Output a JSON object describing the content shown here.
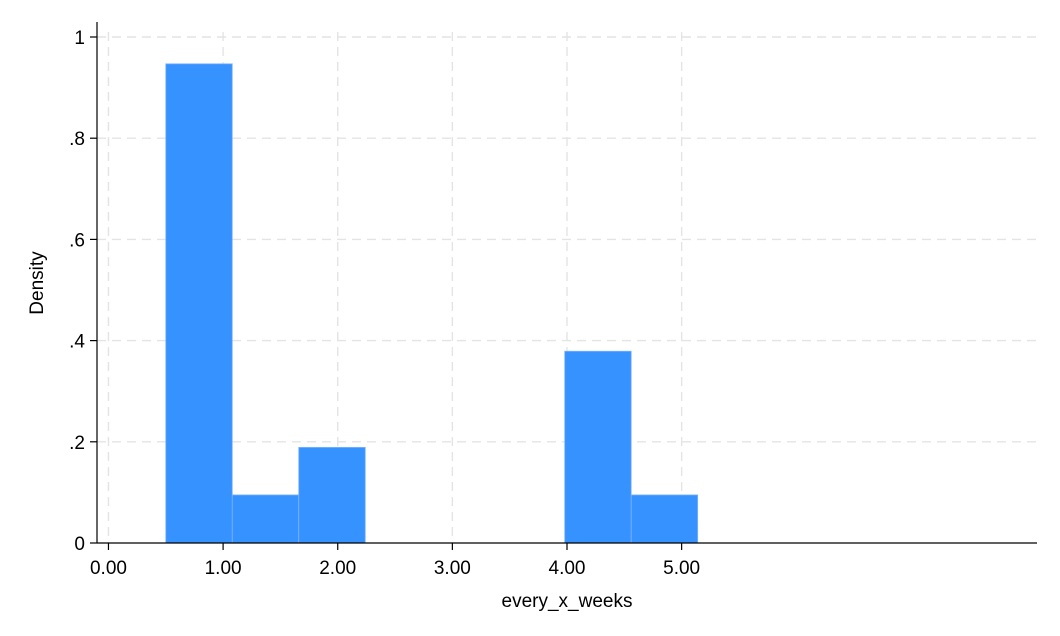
{
  "chart_data": {
    "type": "bar",
    "title": "",
    "xlabel": "every_x_weeks",
    "ylabel": "Density",
    "xlim": [
      -0.1,
      8.1
    ],
    "ylim": [
      0,
      1.0
    ],
    "x_ticks": [
      0,
      1,
      2,
      3,
      4,
      5
    ],
    "x_tick_labels": [
      "0.00",
      "1.00",
      "2.00",
      "3.00",
      "4.00",
      "5.00"
    ],
    "y_ticks": [
      0,
      0.2,
      0.4,
      0.6,
      0.8,
      1
    ],
    "y_tick_labels": [
      "0",
      ".2",
      ".4",
      ".6",
      ".8",
      "1"
    ],
    "grid": true,
    "bar_color": "#3592ff",
    "bins": [
      {
        "start": 0.5,
        "end": 1.08,
        "density": 0.947
      },
      {
        "start": 1.08,
        "end": 1.66,
        "density": 0.095
      },
      {
        "start": 1.66,
        "end": 2.24,
        "density": 0.189
      },
      {
        "start": 2.24,
        "end": 2.82,
        "density": 0
      },
      {
        "start": 2.82,
        "end": 3.4,
        "density": 0
      },
      {
        "start": 3.4,
        "end": 3.98,
        "density": 0
      },
      {
        "start": 3.98,
        "end": 4.56,
        "density": 0.379
      },
      {
        "start": 4.56,
        "end": 5.14,
        "density": 0.095
      }
    ]
  }
}
